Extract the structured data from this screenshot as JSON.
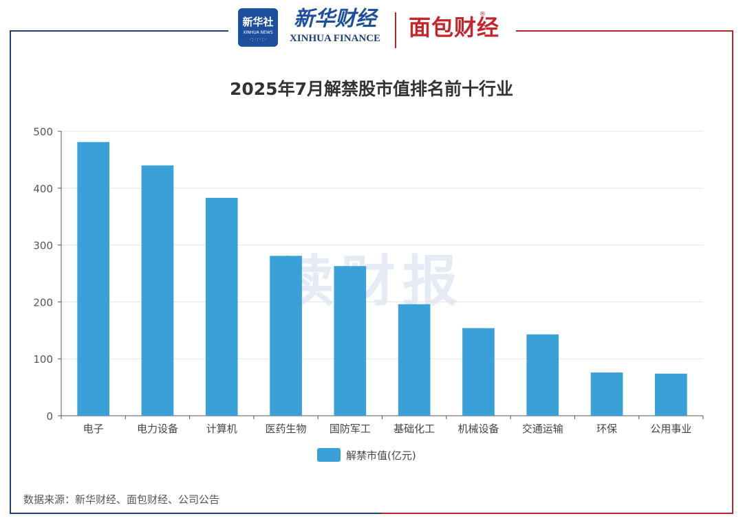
{
  "header": {
    "xinhua_badge_cn": "新华社",
    "xinhua_badge_en": "XINHUA NEWS",
    "xinhua_finance_cn": "新华财经",
    "xinhua_finance_en": "XINHUA FINANCE",
    "mianbao_cn": "面包财经",
    "registered_mark": "®"
  },
  "watermark": "读财报",
  "source": "数据来源：新华财经、面包财经、公司公告",
  "colors": {
    "bar": "#3aa0d8",
    "frame_left": "#1f3f7a",
    "frame_right": "#b2262b",
    "grid": "#e6e6e6"
  },
  "chart_data": {
    "type": "bar",
    "title": "2025年7月解禁股市值排名前十行业",
    "categories": [
      "电子",
      "电力设备",
      "计算机",
      "医药生物",
      "国防军工",
      "基础化工",
      "机械设备",
      "交通运输",
      "环保",
      "公用事业"
    ],
    "series": [
      {
        "name": "解禁市值(亿元)",
        "values": [
          481,
          440,
          383,
          281,
          263,
          196,
          154,
          143,
          76,
          74
        ]
      }
    ],
    "ylim": [
      0,
      500
    ],
    "yticks": [
      0,
      100,
      200,
      300,
      400,
      500
    ],
    "grid": true,
    "legend": "bottom-center"
  }
}
